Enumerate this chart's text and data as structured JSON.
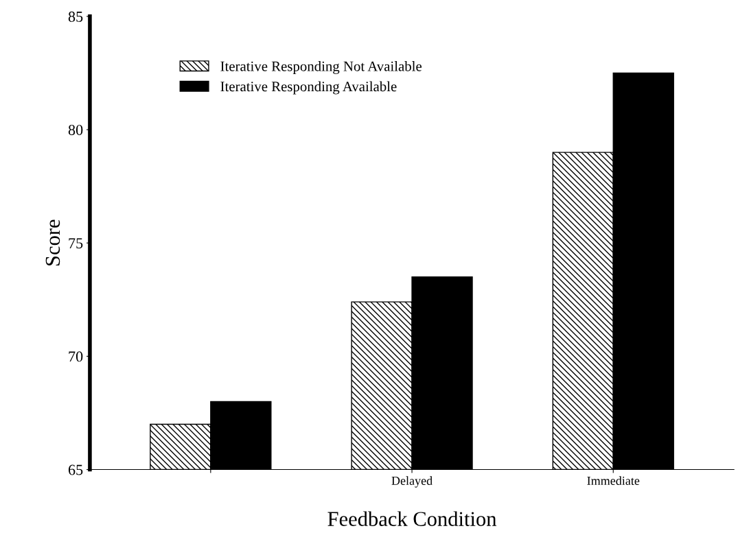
{
  "chart_data": {
    "type": "bar",
    "xlabel": "Feedback Condition",
    "ylabel": "Score",
    "categories": [
      null,
      "Delayed",
      "Immediate"
    ],
    "series": [
      {
        "name": "Iterative Responding Not Available",
        "color": "#000000",
        "values": [
          67.0,
          72.4,
          79.0
        ]
      },
      {
        "name": "Iterative Responding Available",
        "color": "#000000",
        "values": [
          68.0,
          73.5,
          82.5
        ]
      }
    ],
    "ylim": [
      65,
      85
    ],
    "yticks": [
      65,
      70,
      75,
      80,
      85
    ],
    "grid": false,
    "legend": "top left"
  }
}
